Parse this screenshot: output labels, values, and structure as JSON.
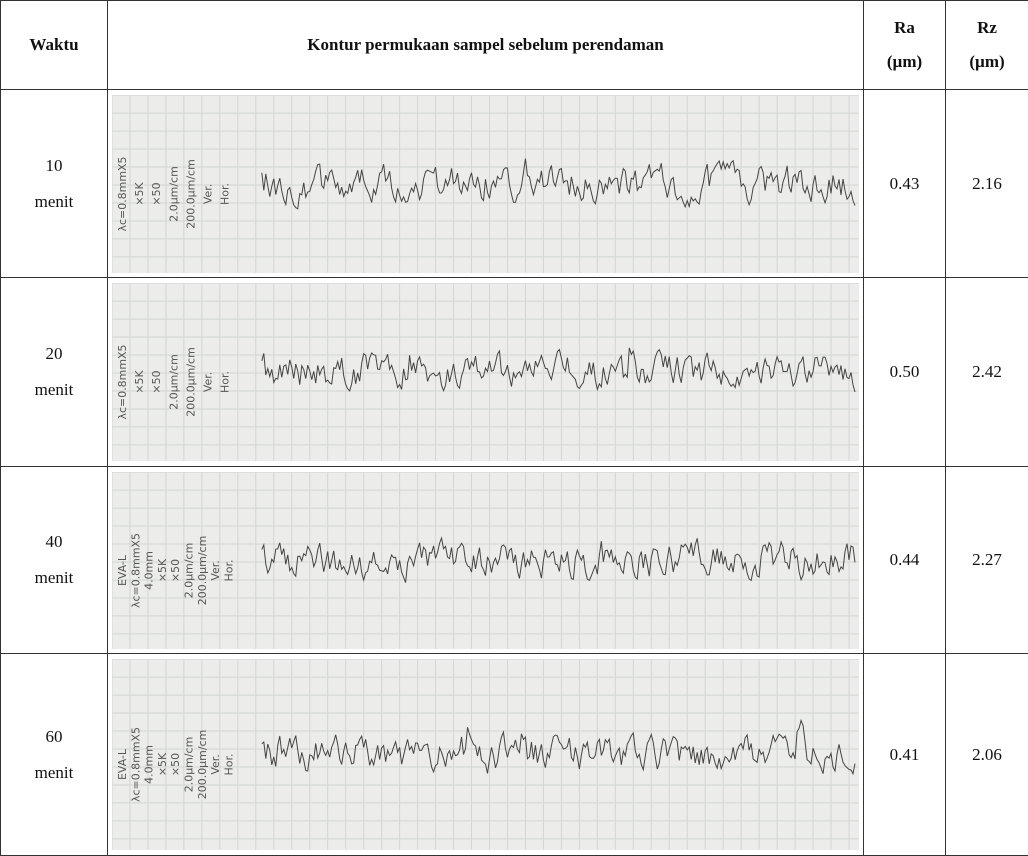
{
  "header": {
    "time": "Waktu",
    "contour": "Kontur permukaan sampel sebelum perendaman",
    "ra": "Ra",
    "ra_unit": "(µm)",
    "rz": "Rz",
    "rz_unit": "(µm)"
  },
  "rows": [
    {
      "time": "10",
      "unit": "menit",
      "ra": "0.43",
      "rz": "2.16",
      "trace_labels": [
        "λc=0.8mmX5",
        "×5K",
        "×50",
        "2.0µm/cm",
        "200.0µm/cm",
        "Ver.",
        "Hor."
      ]
    },
    {
      "time": "20",
      "unit": "menit",
      "ra": "0.50",
      "rz": "2.42",
      "trace_labels": [
        "λc=0.8mmX5",
        "×5K",
        "×50",
        "2.0µm/cm",
        "200.0µm/cm",
        "Ver.",
        "Hor."
      ]
    },
    {
      "time": "40",
      "unit": "menit",
      "ra": "0.44",
      "rz": "2.27",
      "trace_labels": [
        "EVA-L",
        "λc=0.8mmX5",
        "4.0mm",
        "×5K",
        "×50",
        "2.0µm/cm",
        "200.0µm/cm",
        "Ver.",
        "Hor."
      ]
    },
    {
      "time": "60",
      "unit": "menit",
      "ra": "0.41",
      "rz": "2.06",
      "trace_labels": [
        "EVA-L",
        "λc=0.8mmX5",
        "4.0mm",
        "×5K",
        "×50",
        "2.0µm/cm",
        "200.0µm/cm",
        "Ver.",
        "Hor."
      ]
    }
  ]
}
